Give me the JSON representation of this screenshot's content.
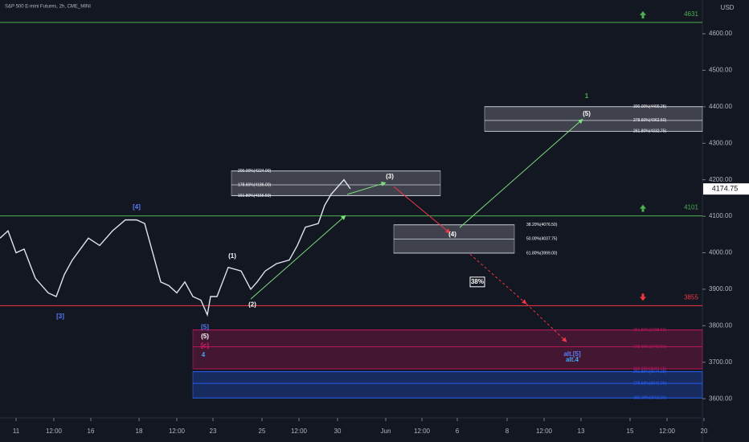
{
  "chart_data": {
    "type": "line",
    "title": "S&P 500 E-mini Futures, 2h, CME_MINI",
    "y_axis_label": "USD",
    "x": [
      0,
      2.5,
      5,
      7.5,
      11,
      15,
      17.5,
      20,
      22.5,
      25,
      27.5,
      31,
      35,
      39,
      42.5,
      45,
      47.5,
      50,
      52.5,
      55,
      57.5,
      60,
      62.5,
      64.5,
      65.5,
      67.5,
      71,
      75,
      78,
      80,
      82.5,
      86,
      90,
      92.5,
      95,
      99,
      101,
      103,
      105,
      107,
      109
    ],
    "series": [
      {
        "color": "#e0e3eb",
        "values": [
          4040,
          4060,
          4000,
          4010,
          3930,
          3890,
          3880,
          3940,
          3980,
          4010,
          4040,
          4020,
          4060,
          4090,
          4090,
          4080,
          4000,
          3920,
          3910,
          3890,
          3920,
          3880,
          3870,
          3830,
          3880,
          3880,
          3960,
          3950,
          3900,
          3920,
          3950,
          3970,
          3980,
          4020,
          4070,
          4080,
          4130,
          4160,
          4180,
          4200,
          4175
        ]
      }
    ],
    "last_price": 4174.75,
    "xlim": [
      0,
      218.5
    ],
    "ylim": [
      3547.5,
      4692.5
    ],
    "xticks": [
      {
        "value": 5,
        "label": "11"
      },
      {
        "value": 16.75,
        "label": "12:00"
      },
      {
        "value": 28.25,
        "label": "16"
      },
      {
        "value": 43.25,
        "label": "18"
      },
      {
        "value": 55,
        "label": "12:00"
      },
      {
        "value": 66.25,
        "label": "23"
      },
      {
        "value": 81.5,
        "label": "25"
      },
      {
        "value": 93,
        "label": "12:00"
      },
      {
        "value": 105,
        "label": "30"
      },
      {
        "value": 120,
        "label": "Jun"
      },
      {
        "value": 131.25,
        "label": "12:00"
      },
      {
        "value": 142.25,
        "label": "6"
      },
      {
        "value": 157.75,
        "label": "8"
      },
      {
        "value": 169.25,
        "label": "12:00"
      },
      {
        "value": 180.75,
        "label": "13"
      },
      {
        "value": 196,
        "label": "15"
      },
      {
        "value": 207.5,
        "label": "12:00"
      },
      {
        "value": 219,
        "label": "20"
      }
    ],
    "yticks": [
      {
        "value": 3600,
        "label": "3600.00"
      },
      {
        "value": 3700,
        "label": "3700.00"
      },
      {
        "value": 3800,
        "label": "3800.00"
      },
      {
        "value": 3900,
        "label": "3900.00"
      },
      {
        "value": 4000,
        "label": "4000.00"
      },
      {
        "value": 4100,
        "label": "4100.00"
      },
      {
        "value": 4200,
        "label": "4200.00"
      },
      {
        "value": 4300,
        "label": "4300.00"
      },
      {
        "value": 4400,
        "label": "4400.00"
      },
      {
        "value": 4500,
        "label": "4500.00"
      },
      {
        "value": 4600,
        "label": "4600.00"
      }
    ],
    "levels": [
      {
        "value": 4631,
        "color": "#4caf50",
        "direction": "up"
      },
      {
        "value": 4101,
        "color": "#4caf50",
        "direction": "up"
      },
      {
        "value": 3855,
        "color": "#f23645",
        "direction": "down"
      }
    ],
    "fib_boxes": [
      {
        "x": [
          72,
          137
        ],
        "color": "#b2b5be",
        "levels": [
          {
            "value": 4224,
            "label": "200.00%(4224.00)"
          },
          {
            "value": 4186,
            "label": "178.60%(4186.00)"
          },
          {
            "value": 4156.5,
            "label": "161.80%(4156.50)"
          }
        ]
      },
      {
        "x": [
          150.75,
          218.5
        ],
        "color": "#b2b5be",
        "levels": [
          {
            "value": 4400.25,
            "label": "300.00%(4400.25)"
          },
          {
            "value": 4362.5,
            "label": "278.60%(4362.50)"
          },
          {
            "value": 4332.75,
            "label": "261.80%(4332.75)"
          }
        ]
      },
      {
        "x": [
          122.5,
          160
        ],
        "color": "#b2b5be",
        "levels": [
          {
            "value": 4076.5,
            "label": "38.20%(4076.50)"
          },
          {
            "value": 4037.75,
            "label": "50.00%(4037.75)"
          },
          {
            "value": 3999,
            "label": "61.80%(3999.00)"
          }
        ]
      },
      {
        "x": [
          60,
          218.5
        ],
        "color": "#c2185b",
        "levels": [
          {
            "value": 3788.5,
            "label": "261.80%(3788.50)"
          },
          {
            "value": 3742.5,
            "label": "278.60%(3742.50)"
          },
          {
            "value": 3681.75,
            "label": "300.00%(3681.75)"
          }
        ]
      },
      {
        "x": [
          60,
          218.5
        ],
        "color": "#2962ff",
        "levels": [
          {
            "value": 3674.25,
            "label": "261.80%(3674.25)"
          },
          {
            "value": 3642,
            "label": "278.60%(3642.00)"
          },
          {
            "value": 3602,
            "label": "300.00%(3602.00)"
          }
        ]
      }
    ],
    "wave_labels": [
      {
        "text": "[4]",
        "x": 42.5,
        "y": 4125,
        "color": "#5b7cfa"
      },
      {
        "text": "[3]",
        "x": 18.75,
        "y": 3825,
        "color": "#5b7cfa"
      },
      {
        "text": "(1)",
        "x": 72.25,
        "y": 3990,
        "color": "#ffffff"
      },
      {
        "text": "(2)",
        "x": 78.5,
        "y": 3857,
        "color": "#ffffff"
      },
      {
        "text": "(3)",
        "x": 121.25,
        "y": 4208,
        "color": "#ffffff"
      },
      {
        "text": "(4)",
        "x": 140.75,
        "y": 4050,
        "color": "#ffffff"
      },
      {
        "text": "(5)",
        "x": 182.5,
        "y": 4380,
        "color": "#ffffff"
      },
      {
        "text": "1",
        "x": 182.5,
        "y": 4428,
        "color": "#4caf50"
      },
      {
        "text": "[5]",
        "x": 63.75,
        "y": 3795,
        "color": "#5b7cfa"
      },
      {
        "text": "(5)",
        "x": 63.75,
        "y": 3770,
        "color": "#ffffff"
      },
      {
        "text": "[c]",
        "x": 63.75,
        "y": 3745,
        "color": "#e91e63"
      },
      {
        "text": "4",
        "x": 63.25,
        "y": 3720,
        "color": "#42a5f5"
      },
      {
        "text": "alt.[5]",
        "x": 178,
        "y": 3722,
        "color": "#5b7cfa"
      },
      {
        "text": "alt.4",
        "x": 178,
        "y": 3706,
        "color": "#42a5f5"
      }
    ],
    "boxed_label": {
      "text": "38%",
      "x": 148.5,
      "y": 3920
    },
    "arrows": [
      {
        "from": [
          78,
          3873
        ],
        "to": [
          107.5,
          4102
        ],
        "color": "#7ee07e",
        "dashed": false
      },
      {
        "from": [
          108,
          4160
        ],
        "to": [
          120,
          4192
        ],
        "color": "#7ee07e",
        "dashed": false
      },
      {
        "from": [
          122.5,
          4181
        ],
        "to": [
          140,
          4054
        ],
        "color": "#f23645",
        "dashed": false
      },
      {
        "from": [
          143,
          4069
        ],
        "to": [
          181.25,
          4366
        ],
        "color": "#7ee07e",
        "dashed": false
      },
      {
        "from": [
          146.25,
          3996
        ],
        "to": [
          163.75,
          3860
        ],
        "color": "#f23645",
        "dashed": true
      },
      {
        "from": [
          163.75,
          3860
        ],
        "to": [
          176.25,
          3756
        ],
        "color": "#f23645",
        "dashed": true
      }
    ]
  }
}
